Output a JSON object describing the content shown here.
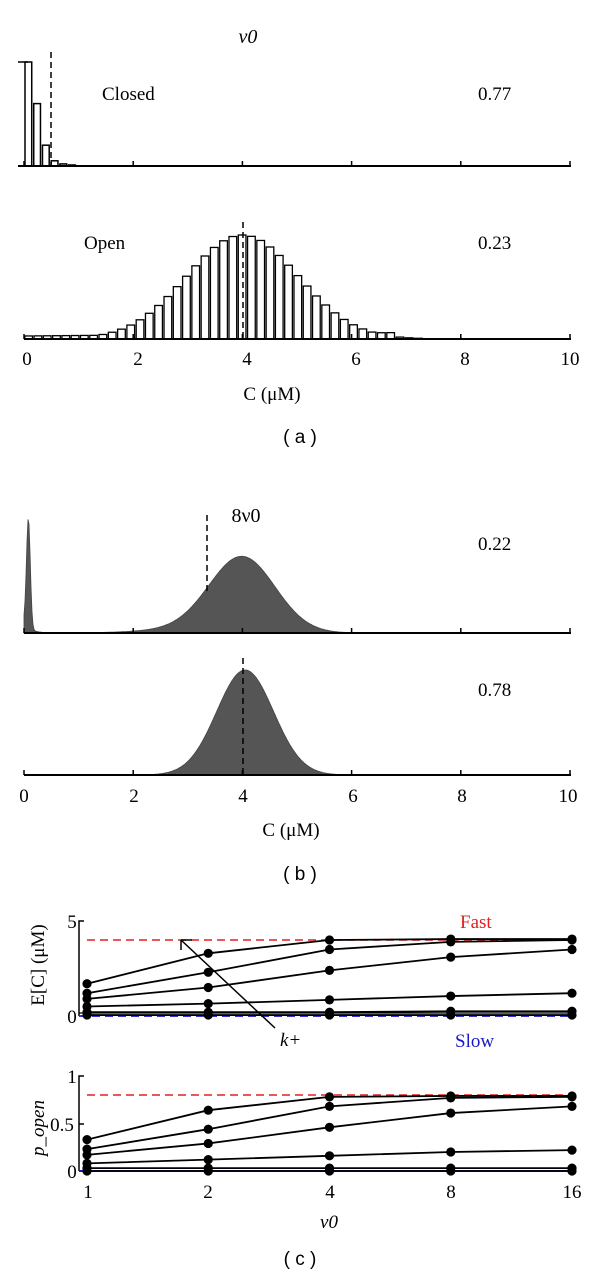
{
  "figure": {
    "panels": {
      "a": {
        "caption": "( a )",
        "title": "ν0",
        "xlabel": "C (μM)",
        "top": {
          "label": "Closed",
          "fraction": "0.77"
        },
        "bottom": {
          "label": "Open",
          "fraction": "0.23"
        }
      },
      "b": {
        "caption": "( b )",
        "title": "8ν0",
        "xlabel": "C (μM)",
        "top": {
          "fraction": "0.22"
        },
        "bottom": {
          "fraction": "0.78"
        }
      },
      "c": {
        "caption": "( c )",
        "top_ylabel": "E[C] (μM)",
        "bottom_ylabel": "p_open",
        "xlabel": "ν0",
        "fast_label": "Fast",
        "slow_label": "Slow",
        "arrow_label": "k+"
      }
    },
    "x_ticks_ab": [
      "0",
      "2",
      "4",
      "6",
      "8",
      "10"
    ],
    "x_ticks_c": [
      "1",
      "2",
      "4",
      "8",
      "16"
    ],
    "y_ticks_c_top": [
      "0",
      "5"
    ],
    "y_ticks_c_bottom": [
      "0",
      "0.5",
      "1"
    ],
    "colors": {
      "fast": "#e02020",
      "slow": "#1a1ac8",
      "fill_b": "#555555",
      "line": "#000000"
    }
  },
  "chart_data": [
    {
      "type": "bar",
      "title": "ν0 — Closed (histogram of C)",
      "xlabel": "C (μM)",
      "xlim": [
        0,
        10
      ],
      "annotation": "Closed",
      "fraction": 0.77,
      "mean_marker": 0.47,
      "bin_width": 0.16,
      "x": [
        0.08,
        0.24,
        0.4,
        0.56,
        0.72,
        0.88
      ],
      "values": [
        1.0,
        0.6,
        0.2,
        0.05,
        0.02,
        0.01
      ]
    },
    {
      "type": "bar",
      "title": "ν0 — Open (histogram of C)",
      "xlabel": "C (μM)",
      "xlim": [
        0,
        10
      ],
      "annotation": "Open",
      "fraction": 0.23,
      "mean_marker": 3.95,
      "bin_width": 0.2,
      "shape": "approximately Gaussian, mean ~4.0, sd ~1.0, small uniform tail near 0"
    },
    {
      "type": "area",
      "title": "8ν0 — Closed (histogram of C)",
      "xlabel": "C (μM)",
      "xlim": [
        0,
        10
      ],
      "fraction": 0.22,
      "mean_marker": 3.35,
      "shape": "sharp spike near 0.1 plus Gaussian bump mean ~4.0, sd ~0.6, peak ~0.55 of spike"
    },
    {
      "type": "area",
      "title": "8ν0 — Open (histogram of C)",
      "xlabel": "C (μM)",
      "xlim": [
        0,
        10
      ],
      "fraction": 0.78,
      "mean_marker": 4.0,
      "shape": "Gaussian, mean ~4.05, sd ~0.5"
    },
    {
      "type": "line",
      "title": "E[C] vs ν0",
      "xlabel": "ν0",
      "ylabel": "E[C] (μM)",
      "x": [
        1,
        2,
        4,
        8,
        16
      ],
      "xscale": "log2",
      "ylim": [
        0,
        5
      ],
      "reference_lines": [
        {
          "name": "Fast",
          "y": 4.1,
          "color": "#e02020"
        },
        {
          "name": "Slow",
          "y": 0.05,
          "color": "#1a1ac8"
        }
      ],
      "annotation": "k+ (arrow indicates increasing k+)",
      "series": [
        {
          "name": "k+ level 6",
          "values": [
            1.7,
            3.3,
            4.0,
            4.05,
            4.05
          ]
        },
        {
          "name": "k+ level 5",
          "values": [
            1.2,
            2.3,
            3.5,
            3.9,
            4.0
          ]
        },
        {
          "name": "k+ level 4",
          "values": [
            0.9,
            1.5,
            2.4,
            3.1,
            3.5
          ]
        },
        {
          "name": "k+ level 3",
          "values": [
            0.5,
            0.65,
            0.85,
            1.05,
            1.2
          ]
        },
        {
          "name": "k+ level 2",
          "values": [
            0.2,
            0.2,
            0.2,
            0.25,
            0.25
          ]
        },
        {
          "name": "k+ level 1",
          "values": [
            0.05,
            0.05,
            0.05,
            0.05,
            0.05
          ]
        }
      ]
    },
    {
      "type": "line",
      "title": "p_open vs ν0",
      "xlabel": "ν0",
      "ylabel": "p_open",
      "x": [
        1,
        2,
        4,
        8,
        16
      ],
      "xscale": "log2",
      "ylim": [
        0,
        1
      ],
      "reference_lines": [
        {
          "name": "Fast",
          "y": 0.8,
          "color": "#e02020"
        },
        {
          "name": "Slow",
          "y": 0.0,
          "color": "#1a1ac8"
        }
      ],
      "series": [
        {
          "name": "k+ level 6",
          "values": [
            0.33,
            0.64,
            0.78,
            0.79,
            0.79
          ]
        },
        {
          "name": "k+ level 5",
          "values": [
            0.23,
            0.44,
            0.68,
            0.77,
            0.78
          ]
        },
        {
          "name": "k+ level 4",
          "values": [
            0.17,
            0.29,
            0.46,
            0.61,
            0.68
          ]
        },
        {
          "name": "k+ level 3",
          "values": [
            0.08,
            0.12,
            0.16,
            0.2,
            0.22
          ]
        },
        {
          "name": "k+ level 2",
          "values": [
            0.03,
            0.03,
            0.03,
            0.03,
            0.03
          ]
        },
        {
          "name": "k+ level 1",
          "values": [
            0.0,
            0.0,
            0.0,
            0.0,
            0.0
          ]
        }
      ]
    }
  ]
}
